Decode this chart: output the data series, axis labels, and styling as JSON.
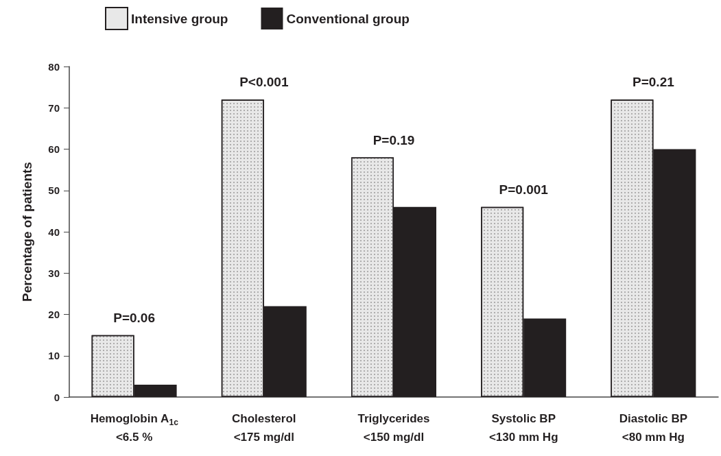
{
  "chart_data": {
    "type": "bar",
    "ylabel": "Percentage of patients",
    "categories": [
      "Hemoglobin A$_{1c}$\n<6.5 %",
      "Cholesterol\n<175 mg/dl",
      "Triglycerides\n<150 mg/dl",
      "Systolic BP\n<130 mm Hg",
      "Diastolic BP\n<80 mm Hg"
    ],
    "series": [
      {
        "name": "Intensive group",
        "color": "#e8e8e8",
        "values": [
          15,
          72,
          58,
          46,
          72
        ]
      },
      {
        "name": "Conventional group",
        "color": "#231f20",
        "values": [
          3,
          22,
          46,
          19,
          60
        ]
      }
    ],
    "ylim": [
      0,
      80
    ],
    "yticks": [
      0,
      10,
      20,
      30,
      40,
      50,
      60,
      70,
      80
    ],
    "grid": false,
    "legend": "top left",
    "annotations": [
      "P=0.06",
      "P<0.001",
      "P=0.19",
      "P=0.001",
      "P=0.21"
    ]
  }
}
